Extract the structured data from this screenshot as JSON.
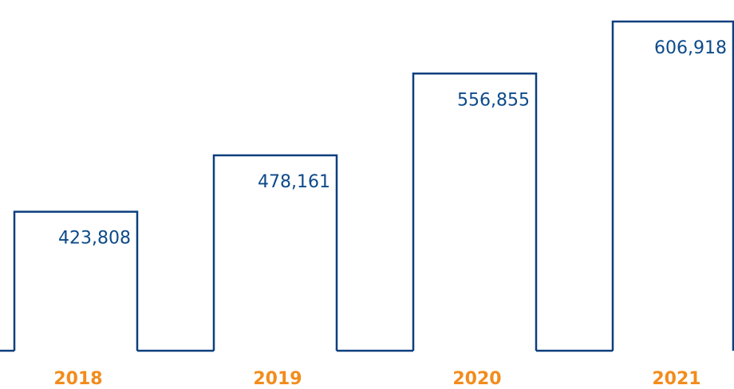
{
  "chart_data": {
    "type": "bar",
    "categories": [
      "2018",
      "2019",
      "2020",
      "2021"
    ],
    "values": [
      423808,
      478161,
      556855,
      606918
    ],
    "value_labels": [
      "423,808",
      "478,161",
      "556,855",
      "606,918"
    ],
    "color": "#0b3f7e",
    "label_color": "#f28c1c",
    "ylim": [
      290000,
      620000
    ]
  }
}
